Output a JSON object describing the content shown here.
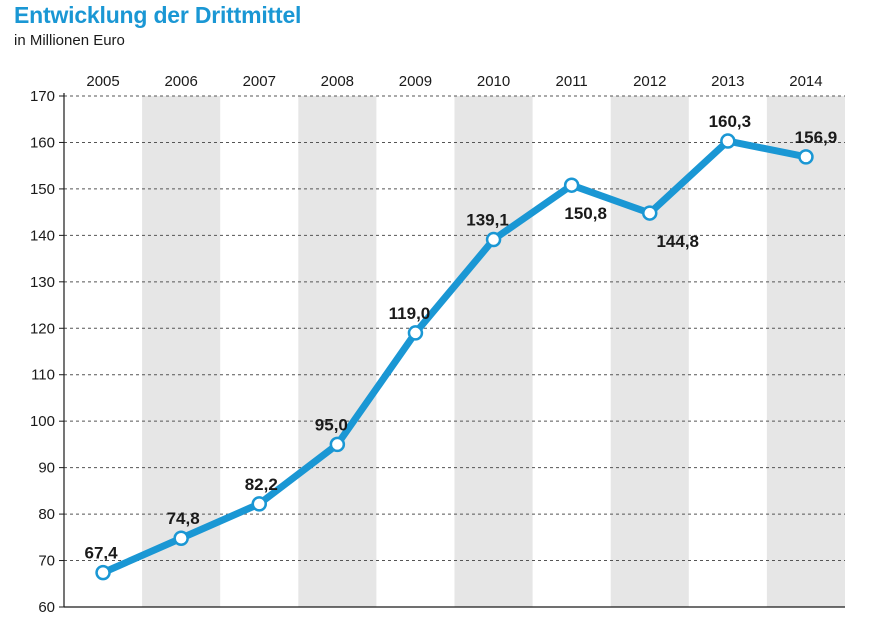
{
  "chart_data": {
    "type": "line",
    "title": "Entwicklung der Drittmittel",
    "subtitle": "in Millionen Euro",
    "categories": [
      "2005",
      "2006",
      "2007",
      "2008",
      "2009",
      "2010",
      "2011",
      "2012",
      "2013",
      "2014"
    ],
    "series": [
      {
        "name": "Drittmittel",
        "values": [
          67.4,
          74.8,
          82.2,
          95.0,
          119.0,
          139.1,
          150.8,
          144.8,
          160.3,
          156.9
        ],
        "labels": [
          "67,4",
          "74,8",
          "82,2",
          "95,0",
          "119,0",
          "139,1",
          "150,8",
          "144,8",
          "160,3",
          "156,9"
        ],
        "color": "#1a97d4"
      }
    ],
    "ylim": [
      60,
      170
    ],
    "yticks": [
      60,
      70,
      80,
      90,
      100,
      110,
      120,
      130,
      140,
      150,
      160,
      170
    ],
    "xlabel": "",
    "ylabel": "",
    "grid": true,
    "band_color": "#e6e6e6"
  }
}
